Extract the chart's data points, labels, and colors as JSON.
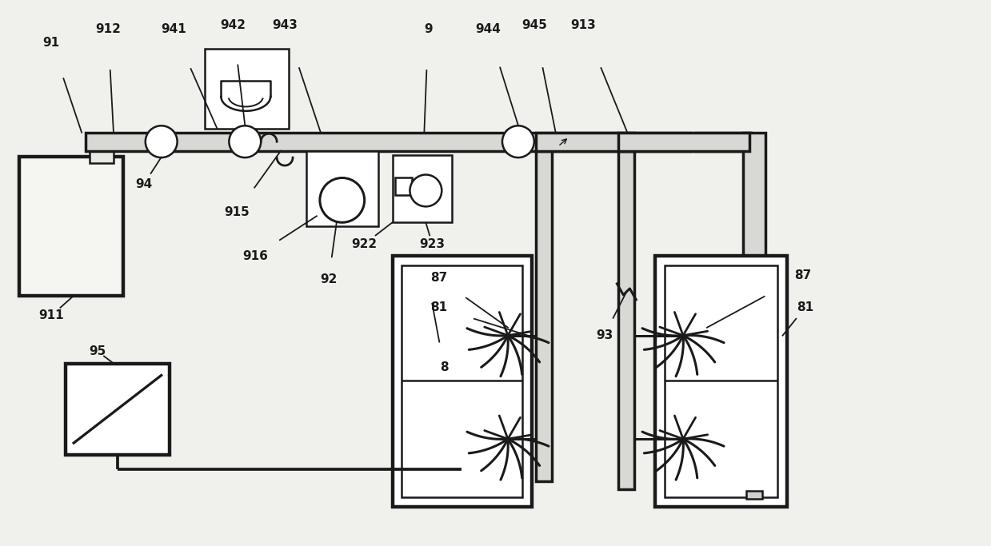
{
  "bg_color": "#f0f0ec",
  "lc": "#1a1a1a",
  "lw": 1.8,
  "tlw": 3.2,
  "pipe_lw": 2.5
}
